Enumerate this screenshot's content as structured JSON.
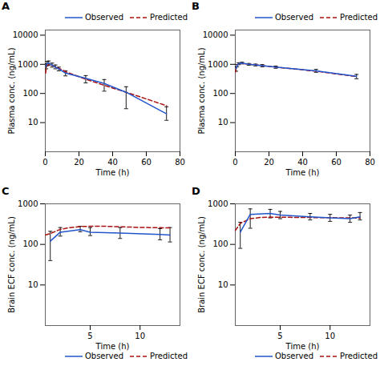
{
  "chart_data": [
    {
      "type": "line",
      "title": "A",
      "xlabel": "Time (h)",
      "ylabel": "Plasma conc. (ng/mL)",
      "xlim": [
        0,
        80
      ],
      "ylim": [
        1,
        15000
      ],
      "xticks": [
        0,
        20,
        40,
        60,
        80
      ],
      "yticks": [
        10,
        100,
        1000,
        10000
      ],
      "log": "y",
      "legend": "upper right",
      "series": [
        {
          "name": "Observed",
          "color": "#2255cc",
          "line_style": "solid",
          "x": [
            0.5,
            1,
            2,
            4,
            6,
            8,
            12,
            24,
            35,
            48,
            72
          ],
          "values": [
            850,
            1050,
            1100,
            950,
            800,
            700,
            500,
            330,
            220,
            110,
            20
          ],
          "error_lo": [
            150,
            150,
            180,
            150,
            100,
            100,
            100,
            100,
            100,
            80,
            8
          ],
          "error_hi": [
            200,
            200,
            200,
            150,
            150,
            100,
            100,
            80,
            80,
            60,
            15
          ]
        },
        {
          "name": "Predicted",
          "color": "#aa1111",
          "line_style": "dashed",
          "x": [
            0.25,
            0.5,
            1,
            2,
            4,
            6,
            8,
            12,
            24,
            35,
            48,
            60,
            72
          ],
          "values": [
            500,
            750,
            900,
            1000,
            920,
            830,
            740,
            560,
            310,
            190,
            110,
            65,
            38
          ]
        }
      ]
    },
    {
      "type": "line",
      "title": "B",
      "xlabel": "Time (h)",
      "ylabel": "Plasma conc. (ng/mL)",
      "xlim": [
        0,
        80
      ],
      "ylim": [
        1,
        15000
      ],
      "xticks": [
        0,
        20,
        40,
        60,
        80
      ],
      "yticks": [
        10,
        100,
        1000,
        10000
      ],
      "log": "y",
      "legend": "upper right",
      "series": [
        {
          "name": "Observed",
          "color": "#2255cc",
          "line_style": "solid",
          "x": [
            0.5,
            1,
            2,
            4,
            8,
            12,
            16,
            24,
            48,
            72
          ],
          "values": [
            700,
            900,
            1050,
            1100,
            1000,
            950,
            900,
            800,
            600,
            390
          ],
          "error_lo": [
            120,
            80,
            80,
            70,
            70,
            70,
            80,
            70,
            70,
            70
          ],
          "error_hi": [
            120,
            80,
            80,
            80,
            70,
            70,
            80,
            70,
            70,
            60
          ]
        },
        {
          "name": "Predicted",
          "color": "#aa1111",
          "line_style": "dashed",
          "x": [
            0.25,
            0.5,
            1,
            2,
            4,
            8,
            12,
            16,
            24,
            48,
            72
          ],
          "values": [
            550,
            780,
            920,
            1050,
            1080,
            1000,
            950,
            900,
            800,
            580,
            380
          ]
        }
      ]
    },
    {
      "type": "line",
      "title": "C",
      "xlabel": "Time (h)",
      "ylabel": "Brain ECF conc. (ng/mL)",
      "xlim": [
        0.5,
        14
      ],
      "ylim": [
        1,
        1000
      ],
      "xticks": [
        5,
        10
      ],
      "yticks": [
        10,
        100,
        1000
      ],
      "log": "y",
      "legend": "lower right",
      "series": [
        {
          "name": "Observed",
          "color": "#2255cc",
          "line_style": "solid",
          "x": [
            1,
            2,
            4,
            5,
            8,
            12,
            13
          ],
          "values": [
            120,
            200,
            230,
            200,
            190,
            175,
            170
          ],
          "error_lo": [
            80,
            40,
            25,
            35,
            50,
            45,
            55
          ],
          "error_hi": [
            90,
            60,
            50,
            60,
            70,
            70,
            90
          ]
        },
        {
          "name": "Predicted",
          "color": "#aa1111",
          "line_style": "dashed",
          "x": [
            0.5,
            1,
            2,
            3,
            4,
            5,
            6,
            7,
            8,
            10,
            12,
            13
          ],
          "values": [
            170,
            185,
            235,
            260,
            275,
            280,
            280,
            278,
            272,
            262,
            258,
            255
          ]
        }
      ]
    },
    {
      "type": "line",
      "title": "D",
      "xlabel": "Time (h)",
      "ylabel": "Brain ECF conc. (ng/mL)",
      "xlim": [
        0.5,
        14
      ],
      "ylim": [
        1,
        1000
      ],
      "xticks": [
        5,
        10
      ],
      "yticks": [
        10,
        100,
        1000
      ],
      "log": "y",
      "legend": "lower right",
      "series": [
        {
          "name": "Observed",
          "color": "#2255cc",
          "line_style": "solid",
          "x": [
            1,
            2,
            4,
            5,
            8,
            10,
            12,
            13
          ],
          "values": [
            200,
            550,
            580,
            530,
            480,
            450,
            430,
            480
          ],
          "error_lo": [
            120,
            300,
            130,
            100,
            80,
            80,
            80,
            80
          ],
          "error_hi": [
            150,
            200,
            150,
            120,
            100,
            100,
            100,
            130
          ]
        },
        {
          "name": "Predicted",
          "color": "#aa1111",
          "line_style": "dashed",
          "x": [
            0.5,
            1,
            2,
            3,
            4,
            5,
            6,
            7,
            8,
            10,
            12,
            13
          ],
          "values": [
            220,
            330,
            430,
            460,
            470,
            468,
            465,
            462,
            460,
            455,
            450,
            448
          ]
        }
      ]
    }
  ]
}
